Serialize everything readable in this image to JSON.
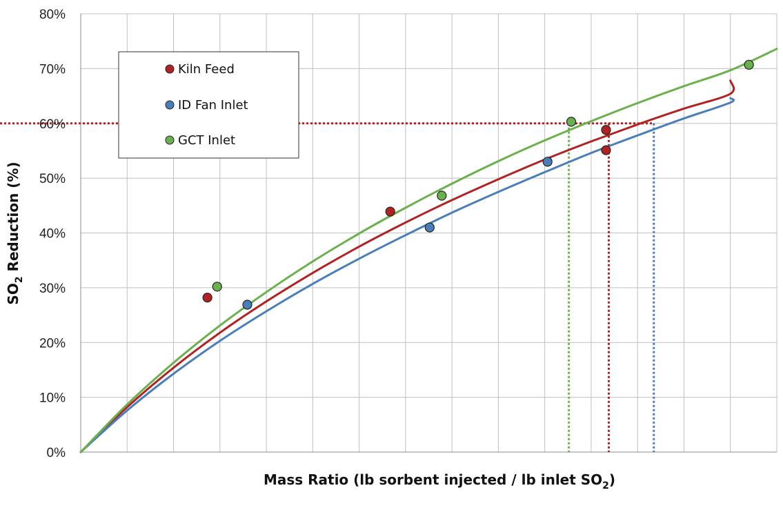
{
  "chart_data": {
    "type": "scatter",
    "xlabel": {
      "main": "Mass Ratio (lb sorbent injected / lb inlet SO",
      "sub": "2",
      "end": ")"
    },
    "ylabel": {
      "main": "SO",
      "sub": "2",
      "end": " Reduction (%)"
    },
    "ylim": [
      0,
      0.8
    ],
    "y_ticks": [
      "0%",
      "10%",
      "20%",
      "30%",
      "40%",
      "50%",
      "60%",
      "70%",
      "80%"
    ],
    "x_grid_divisions": 15,
    "grid": true,
    "x_tick_labels_shown": false,
    "legend": {
      "position": "top-left"
    },
    "series": [
      {
        "name": "Kiln Feed",
        "color": "#b22222",
        "points": [
          [
            2.73,
            0.282
          ],
          [
            6.67,
            0.439
          ],
          [
            11.32,
            0.588
          ],
          [
            11.32,
            0.551
          ]
        ],
        "curve": [
          [
            0,
            0
          ],
          [
            1,
            0.082
          ],
          [
            2,
            0.154
          ],
          [
            3,
            0.218
          ],
          [
            4,
            0.275
          ],
          [
            5,
            0.327
          ],
          [
            6,
            0.375
          ],
          [
            7,
            0.419
          ],
          [
            8,
            0.46
          ],
          [
            9,
            0.498
          ],
          [
            10,
            0.534
          ],
          [
            11,
            0.567
          ],
          [
            12,
            0.598
          ],
          [
            13,
            0.627
          ],
          [
            14,
            0.654
          ],
          [
            14.0,
            0.678
          ]
        ],
        "crossing_x": 11.38
      },
      {
        "name": "ID Fan Inlet",
        "color": "#4a7ebb",
        "points": [
          [
            3.59,
            0.269
          ],
          [
            7.52,
            0.41
          ],
          [
            10.06,
            0.53
          ]
        ],
        "curve": [
          [
            0,
            0
          ],
          [
            1,
            0.076
          ],
          [
            2,
            0.143
          ],
          [
            3,
            0.203
          ],
          [
            4,
            0.257
          ],
          [
            5,
            0.307
          ],
          [
            6,
            0.353
          ],
          [
            7,
            0.396
          ],
          [
            8,
            0.437
          ],
          [
            9,
            0.475
          ],
          [
            10,
            0.511
          ],
          [
            11,
            0.546
          ],
          [
            12,
            0.578
          ],
          [
            13,
            0.609
          ],
          [
            14,
            0.638
          ],
          [
            14.0,
            0.646
          ]
        ],
        "crossing_x": 12.35
      },
      {
        "name": "GCT Inlet",
        "color": "#6ab04c",
        "points": [
          [
            2.94,
            0.302
          ],
          [
            7.78,
            0.468
          ],
          [
            10.57,
            0.603
          ],
          [
            14.4,
            0.707
          ]
        ],
        "curve": [
          [
            0,
            0
          ],
          [
            1,
            0.087
          ],
          [
            2,
            0.163
          ],
          [
            3,
            0.231
          ],
          [
            4,
            0.292
          ],
          [
            5,
            0.348
          ],
          [
            6,
            0.399
          ],
          [
            7,
            0.446
          ],
          [
            8,
            0.49
          ],
          [
            9,
            0.531
          ],
          [
            10,
            0.569
          ],
          [
            11,
            0.604
          ],
          [
            12,
            0.637
          ],
          [
            13,
            0.668
          ],
          [
            14,
            0.697
          ],
          [
            15,
            0.736
          ]
        ],
        "crossing_x": 10.52
      }
    ],
    "reference_line_y": 0.6
  }
}
